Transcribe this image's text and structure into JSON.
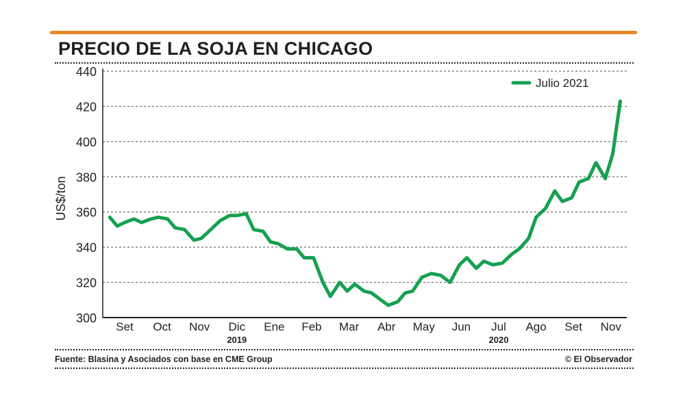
{
  "title": "PRECIO DE LA SOJA EN CHICAGO",
  "footer": {
    "source": "Fuente: Blasina y Asociados con base en CME Group",
    "copyright": "© El Observador"
  },
  "colors": {
    "accent": "#e8872a",
    "series": "#16a050",
    "text": "#231f20"
  },
  "chart_data": {
    "type": "line",
    "title": "PRECIO DE LA SOJA EN CHICAGO",
    "ylabel": "US$/ton",
    "xlabel": "",
    "ylim": [
      300,
      440
    ],
    "yticks": [
      300,
      320,
      340,
      360,
      380,
      400,
      420,
      440
    ],
    "grid": "horizontal dotted",
    "legend_position": "top-right",
    "months": [
      "Set",
      "Oct",
      "Nov",
      "Dic",
      "Ene",
      "Feb",
      "Mar",
      "Abr",
      "May",
      "Jun",
      "Jul",
      "Ago",
      "Set",
      "Nov"
    ],
    "year_labels": [
      {
        "label": "2019",
        "under": "Dic"
      },
      {
        "label": "2020",
        "under": "Jul"
      }
    ],
    "series": [
      {
        "name": "Julio 2021",
        "x_month_index": [
          -0.4,
          -0.2,
          0.0,
          0.25,
          0.45,
          0.7,
          0.9,
          1.15,
          1.35,
          1.6,
          1.85,
          2.05,
          2.3,
          2.55,
          2.8,
          3.0,
          3.25,
          3.45,
          3.7,
          3.9,
          4.1,
          4.35,
          4.6,
          4.8,
          5.05,
          5.3,
          5.5,
          5.75,
          5.95,
          6.15,
          6.4,
          6.6,
          6.85,
          7.05,
          7.3,
          7.5,
          7.7,
          7.95,
          8.2,
          8.45,
          8.7,
          8.95,
          9.15,
          9.4,
          9.6,
          9.85,
          10.1,
          10.35,
          10.55,
          10.8,
          11.0,
          11.25,
          11.5,
          11.7,
          11.95,
          12.15,
          12.4,
          12.6,
          12.85,
          13.05,
          13.25
        ],
        "values": [
          357,
          352,
          354,
          356,
          354,
          356,
          357,
          356,
          351,
          350,
          344,
          345,
          350,
          355,
          358,
          358,
          359,
          350,
          349,
          343,
          342,
          339,
          339,
          334,
          334,
          320,
          312,
          320,
          315,
          319,
          315,
          314,
          310,
          307,
          309,
          314,
          315,
          323,
          325,
          324,
          320,
          330,
          334,
          328,
          332,
          330,
          331,
          336,
          339,
          345,
          357,
          362,
          372,
          366,
          368,
          377,
          379,
          388,
          379,
          393,
          423
        ]
      }
    ]
  }
}
